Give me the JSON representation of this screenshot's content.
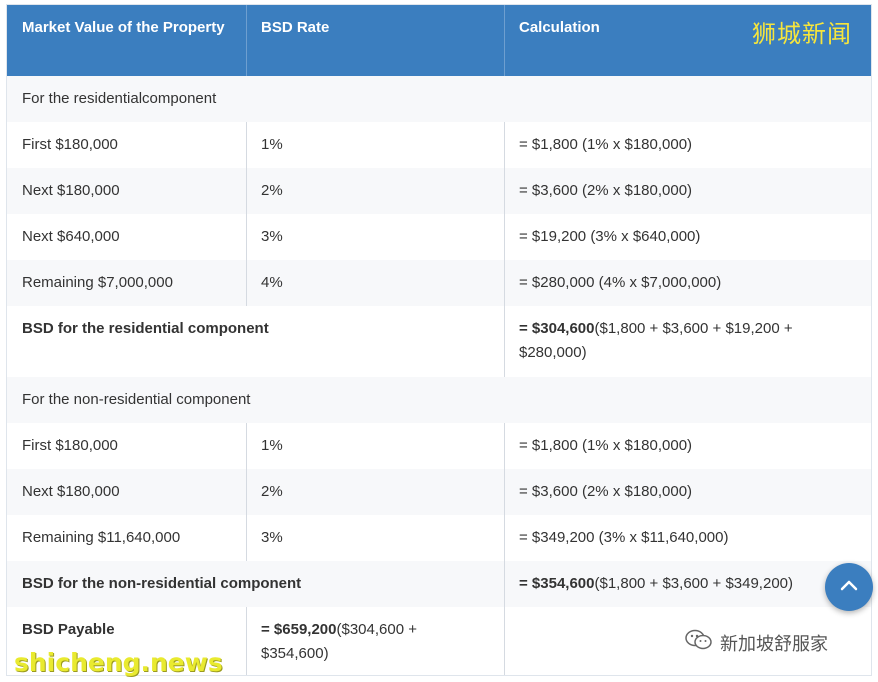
{
  "header": {
    "col1": "Market Value of the Property",
    "col2": "BSD Rate",
    "col3": "Calculation"
  },
  "sections": {
    "residential": {
      "title": "For the residentialcomponent",
      "rows": [
        {
          "value": "First $180,000",
          "rate": "1%",
          "calc": "= $1,800 (1% x $180,000)"
        },
        {
          "value": "Next $180,000",
          "rate": "2%",
          "calc": "= $3,600 (2% x $180,000)"
        },
        {
          "value": "Next $640,000",
          "rate": "3%",
          "calc": "= $19,200 (3% x $640,000)"
        },
        {
          "value": "Remaining $7,000,000",
          "rate": "4%",
          "calc": "= $280,000 (4% x $7,000,000)"
        }
      ],
      "total_label": "BSD for the residential component",
      "total_bold": "= $304,600",
      "total_rest": "($1,800 + $3,600 + $19,200 + $280,000)"
    },
    "non_residential": {
      "title": "For the non-residential component",
      "rows": [
        {
          "value": "First $180,000",
          "rate": "1%",
          "calc": "= $1,800 (1% x $180,000)"
        },
        {
          "value": "Next $180,000",
          "rate": "2%",
          "calc": "= $3,600 (2% x $180,000)"
        },
        {
          "value": "Remaining $11,640,000",
          "rate": "3%",
          "calc": "= $349,200 (3% x $11,640,000)"
        }
      ],
      "total_label": "BSD for the non-residential component",
      "total_bold": "= $354,600",
      "total_rest": "($1,800 + $3,600 + $349,200)"
    }
  },
  "payable": {
    "label": "BSD Payable",
    "bold": "= $659,200",
    "rest": "($304,600 + $354,600)"
  },
  "watermarks": {
    "top": "狮城新闻",
    "bottom_left": "shicheng.news",
    "bottom_right": "新加坡舒服家"
  },
  "icons": {
    "scroll_top": "chevron-up-icon",
    "wechat": "wechat-icon"
  },
  "colors": {
    "header_bg": "#3b7ebf",
    "alt_row": "#f7f8fa"
  }
}
